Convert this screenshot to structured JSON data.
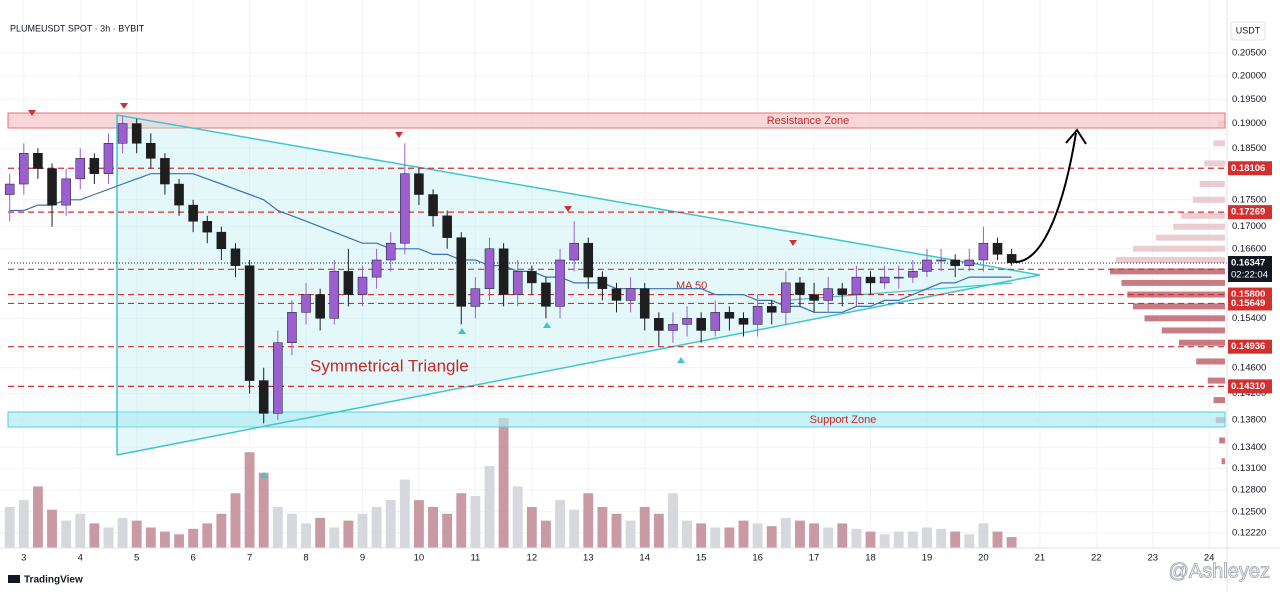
{
  "chart_data": {
    "type": "candlestick",
    "title": "PLUMEUSDT SPOT · 3h · BYBIT",
    "currency": "USDT",
    "brand": "TradingView",
    "watermark": "@Ashleyez",
    "annotations": {
      "resistance": "Resistance Zone",
      "support": "Support Zone",
      "pattern": "Symmetrical Triangle",
      "ma": "MA 50"
    },
    "log_scale": true,
    "grid": true,
    "up_color": "#9c5fd0",
    "down_color": "#1e1e1e",
    "up_volume_color": "#d6d8de",
    "down_volume_color": "#c99aa3",
    "ma_color": "#3f6fb0",
    "xlim": [
      2.72,
      24.28
    ],
    "xticks": [
      3,
      4,
      5,
      6,
      7,
      8,
      9,
      10,
      11,
      12,
      13,
      14,
      15,
      16,
      17,
      18,
      19,
      20,
      21,
      22,
      23,
      24
    ],
    "ylim": [
      0.1206,
      0.2136
    ],
    "yticks": [
      {
        "value": 0.205,
        "label": "0.20500"
      },
      {
        "value": 0.2,
        "label": "0.20000"
      },
      {
        "value": 0.195,
        "label": "0.19500"
      },
      {
        "value": 0.19,
        "label": "0.19000"
      },
      {
        "value": 0.185,
        "label": "0.18500"
      },
      {
        "value": 0.175,
        "label": "0.17500"
      },
      {
        "value": 0.17,
        "label": "0.17000"
      },
      {
        "value": 0.166,
        "label": "0.16600"
      },
      {
        "value": 0.154,
        "label": "0.15400"
      },
      {
        "value": 0.146,
        "label": "0.14600"
      },
      {
        "value": 0.142,
        "label": "0.14200"
      },
      {
        "value": 0.138,
        "label": "0.13800"
      },
      {
        "value": 0.134,
        "label": "0.13400"
      },
      {
        "value": 0.131,
        "label": "0.13100"
      },
      {
        "value": 0.128,
        "label": "0.12800"
      },
      {
        "value": 0.125,
        "label": "0.12500"
      },
      {
        "value": 0.1222,
        "label": "0.12220"
      }
    ],
    "price_levels": [
      {
        "value": 0.18106,
        "color": "#d32f2f"
      },
      {
        "value": 0.17269,
        "color": "#d32f2f"
      },
      {
        "value": 0.16236,
        "color": "#d32f2f"
      },
      {
        "value": 0.158,
        "label": "0.15800",
        "color": "#d32f2f"
      },
      {
        "value": 0.15649,
        "color": "#d32f2f"
      },
      {
        "value": 0.14936,
        "color": "#d32f2f"
      },
      {
        "value": 0.1431,
        "label": "0.14310",
        "color": "#d32f2f"
      }
    ],
    "last_price": {
      "value": 0.16347,
      "countdown": "02:22:04",
      "color": "#131722"
    },
    "x": [
      2.75,
      3,
      3.25,
      3.5,
      3.75,
      4,
      4.25,
      4.5,
      4.75,
      5,
      5.25,
      5.5,
      5.75,
      6,
      6.25,
      6.5,
      6.75,
      7,
      7.25,
      7.5,
      7.75,
      8,
      8.25,
      8.5,
      8.75,
      9,
      9.25,
      9.5,
      9.75,
      10,
      10.25,
      10.5,
      10.75,
      11,
      11.25,
      11.5,
      11.75,
      12,
      12.25,
      12.5,
      12.75,
      13,
      13.25,
      13.5,
      13.75,
      14,
      14.25,
      14.5,
      14.75,
      15,
      15.25,
      15.5,
      15.75,
      16,
      16.25,
      16.5,
      16.75,
      17,
      17.25,
      17.5,
      17.75,
      18,
      18.25,
      18.5,
      18.75,
      19,
      19.25,
      19.5,
      19.75,
      20,
      20.25,
      20.5
    ],
    "open": [
      0.176,
      0.178,
      0.184,
      0.181,
      0.174,
      0.179,
      0.183,
      0.18,
      0.186,
      0.19,
      0.186,
      0.183,
      0.178,
      0.174,
      0.171,
      0.169,
      0.166,
      0.163,
      0.144,
      0.139,
      0.15,
      0.155,
      0.158,
      0.154,
      0.162,
      0.158,
      0.161,
      0.164,
      0.167,
      0.18,
      0.176,
      0.172,
      0.168,
      0.156,
      0.159,
      0.166,
      0.158,
      0.162,
      0.16,
      0.156,
      0.164,
      0.167,
      0.161,
      0.159,
      0.157,
      0.159,
      0.154,
      0.152,
      0.153,
      0.154,
      0.152,
      0.155,
      0.154,
      0.153,
      0.156,
      0.155,
      0.16,
      0.158,
      0.157,
      0.159,
      0.158,
      0.161,
      0.16,
      0.161,
      0.161,
      0.162,
      0.164,
      0.164,
      0.163,
      0.164,
      0.167,
      0.165
    ],
    "high": [
      0.18,
      0.186,
      0.185,
      0.182,
      0.181,
      0.185,
      0.184,
      0.188,
      0.1915,
      0.191,
      0.188,
      0.184,
      0.179,
      0.175,
      0.172,
      0.17,
      0.167,
      0.164,
      0.146,
      0.152,
      0.157,
      0.16,
      0.159,
      0.164,
      0.166,
      0.163,
      0.166,
      0.169,
      0.186,
      0.181,
      0.177,
      0.173,
      0.169,
      0.161,
      0.168,
      0.167,
      0.164,
      0.163,
      0.161,
      0.166,
      0.171,
      0.168,
      0.162,
      0.16,
      0.161,
      0.16,
      0.155,
      0.155,
      0.156,
      0.155,
      0.157,
      0.156,
      0.155,
      0.158,
      0.157,
      0.162,
      0.161,
      0.16,
      0.161,
      0.16,
      0.163,
      0.162,
      0.163,
      0.163,
      0.164,
      0.166,
      0.166,
      0.165,
      0.166,
      0.17,
      0.168,
      0.166
    ],
    "low": [
      0.171,
      0.176,
      0.179,
      0.17,
      0.172,
      0.177,
      0.178,
      0.178,
      0.184,
      0.184,
      0.181,
      0.176,
      0.172,
      0.169,
      0.167,
      0.164,
      0.161,
      0.142,
      0.1375,
      0.138,
      0.148,
      0.153,
      0.152,
      0.153,
      0.156,
      0.156,
      0.159,
      0.162,
      0.165,
      0.174,
      0.17,
      0.166,
      0.153,
      0.154,
      0.157,
      0.156,
      0.156,
      0.158,
      0.154,
      0.154,
      0.162,
      0.159,
      0.157,
      0.155,
      0.155,
      0.152,
      0.1495,
      0.15,
      0.151,
      0.15,
      0.151,
      0.152,
      0.151,
      0.151,
      0.153,
      0.153,
      0.156,
      0.155,
      0.155,
      0.156,
      0.156,
      0.158,
      0.159,
      0.159,
      0.16,
      0.161,
      0.162,
      0.161,
      0.162,
      0.162,
      0.164,
      0.163
    ],
    "close": [
      0.178,
      0.184,
      0.181,
      0.174,
      0.179,
      0.183,
      0.18,
      0.186,
      0.19,
      0.186,
      0.183,
      0.178,
      0.174,
      0.171,
      0.169,
      0.166,
      0.163,
      0.144,
      0.139,
      0.15,
      0.155,
      0.158,
      0.154,
      0.162,
      0.158,
      0.161,
      0.164,
      0.167,
      0.18,
      0.176,
      0.172,
      0.168,
      0.156,
      0.159,
      0.166,
      0.158,
      0.162,
      0.16,
      0.156,
      0.164,
      0.167,
      0.161,
      0.159,
      0.157,
      0.159,
      0.154,
      0.152,
      0.153,
      0.154,
      0.152,
      0.155,
      0.154,
      0.153,
      0.156,
      0.155,
      0.16,
      0.158,
      0.157,
      0.159,
      0.158,
      0.161,
      0.16,
      0.161,
      0.161,
      0.162,
      0.164,
      0.164,
      0.163,
      0.164,
      0.167,
      0.165,
      0.1635
    ],
    "volume": [
      30,
      35,
      45,
      28,
      20,
      25,
      18,
      15,
      22,
      20,
      15,
      12,
      10,
      14,
      18,
      25,
      40,
      70,
      55,
      30,
      25,
      18,
      22,
      15,
      20,
      25,
      30,
      35,
      50,
      35,
      30,
      25,
      40,
      38,
      60,
      95,
      45,
      30,
      20,
      35,
      28,
      40,
      30,
      25,
      20,
      30,
      25,
      40,
      20,
      18,
      15,
      15,
      20,
      18,
      16,
      22,
      20,
      18,
      15,
      18,
      14,
      12,
      10,
      12,
      12,
      15,
      14,
      12,
      10,
      18,
      12,
      8
    ],
    "ma50": [
      0.173,
      0.173,
      0.174,
      0.174,
      0.175,
      0.175,
      0.176,
      0.177,
      0.178,
      0.179,
      0.18,
      0.18,
      0.18,
      0.18,
      0.179,
      0.178,
      0.177,
      0.176,
      0.175,
      0.173,
      0.172,
      0.171,
      0.17,
      0.169,
      0.168,
      0.167,
      0.167,
      0.166,
      0.166,
      0.166,
      0.165,
      0.165,
      0.164,
      0.164,
      0.163,
      0.163,
      0.162,
      0.162,
      0.161,
      0.161,
      0.16,
      0.16,
      0.16,
      0.159,
      0.159,
      0.159,
      0.159,
      0.159,
      0.159,
      0.159,
      0.158,
      0.158,
      0.158,
      0.157,
      0.157,
      0.156,
      0.156,
      0.155,
      0.155,
      0.155,
      0.156,
      0.156,
      0.157,
      0.157,
      0.158,
      0.159,
      0.16,
      0.16,
      0.161,
      0.161,
      0.161,
      0.161
    ],
    "volume_profile": {
      "color": "#c0646e",
      "upper_color": "#e7c3c8",
      "prices": [
        0.19,
        0.186,
        0.182,
        0.178,
        0.175,
        0.172,
        0.17,
        0.168,
        0.166,
        0.164,
        0.162,
        0.16,
        0.158,
        0.156,
        0.154,
        0.152,
        0.15,
        0.147,
        0.144,
        0.141,
        0.138,
        0.135,
        0.132
      ],
      "sizes": [
        6,
        10,
        18,
        22,
        28,
        38,
        45,
        60,
        80,
        95,
        100,
        90,
        85,
        80,
        70,
        55,
        40,
        25,
        15,
        10,
        8,
        5,
        3
      ]
    }
  }
}
